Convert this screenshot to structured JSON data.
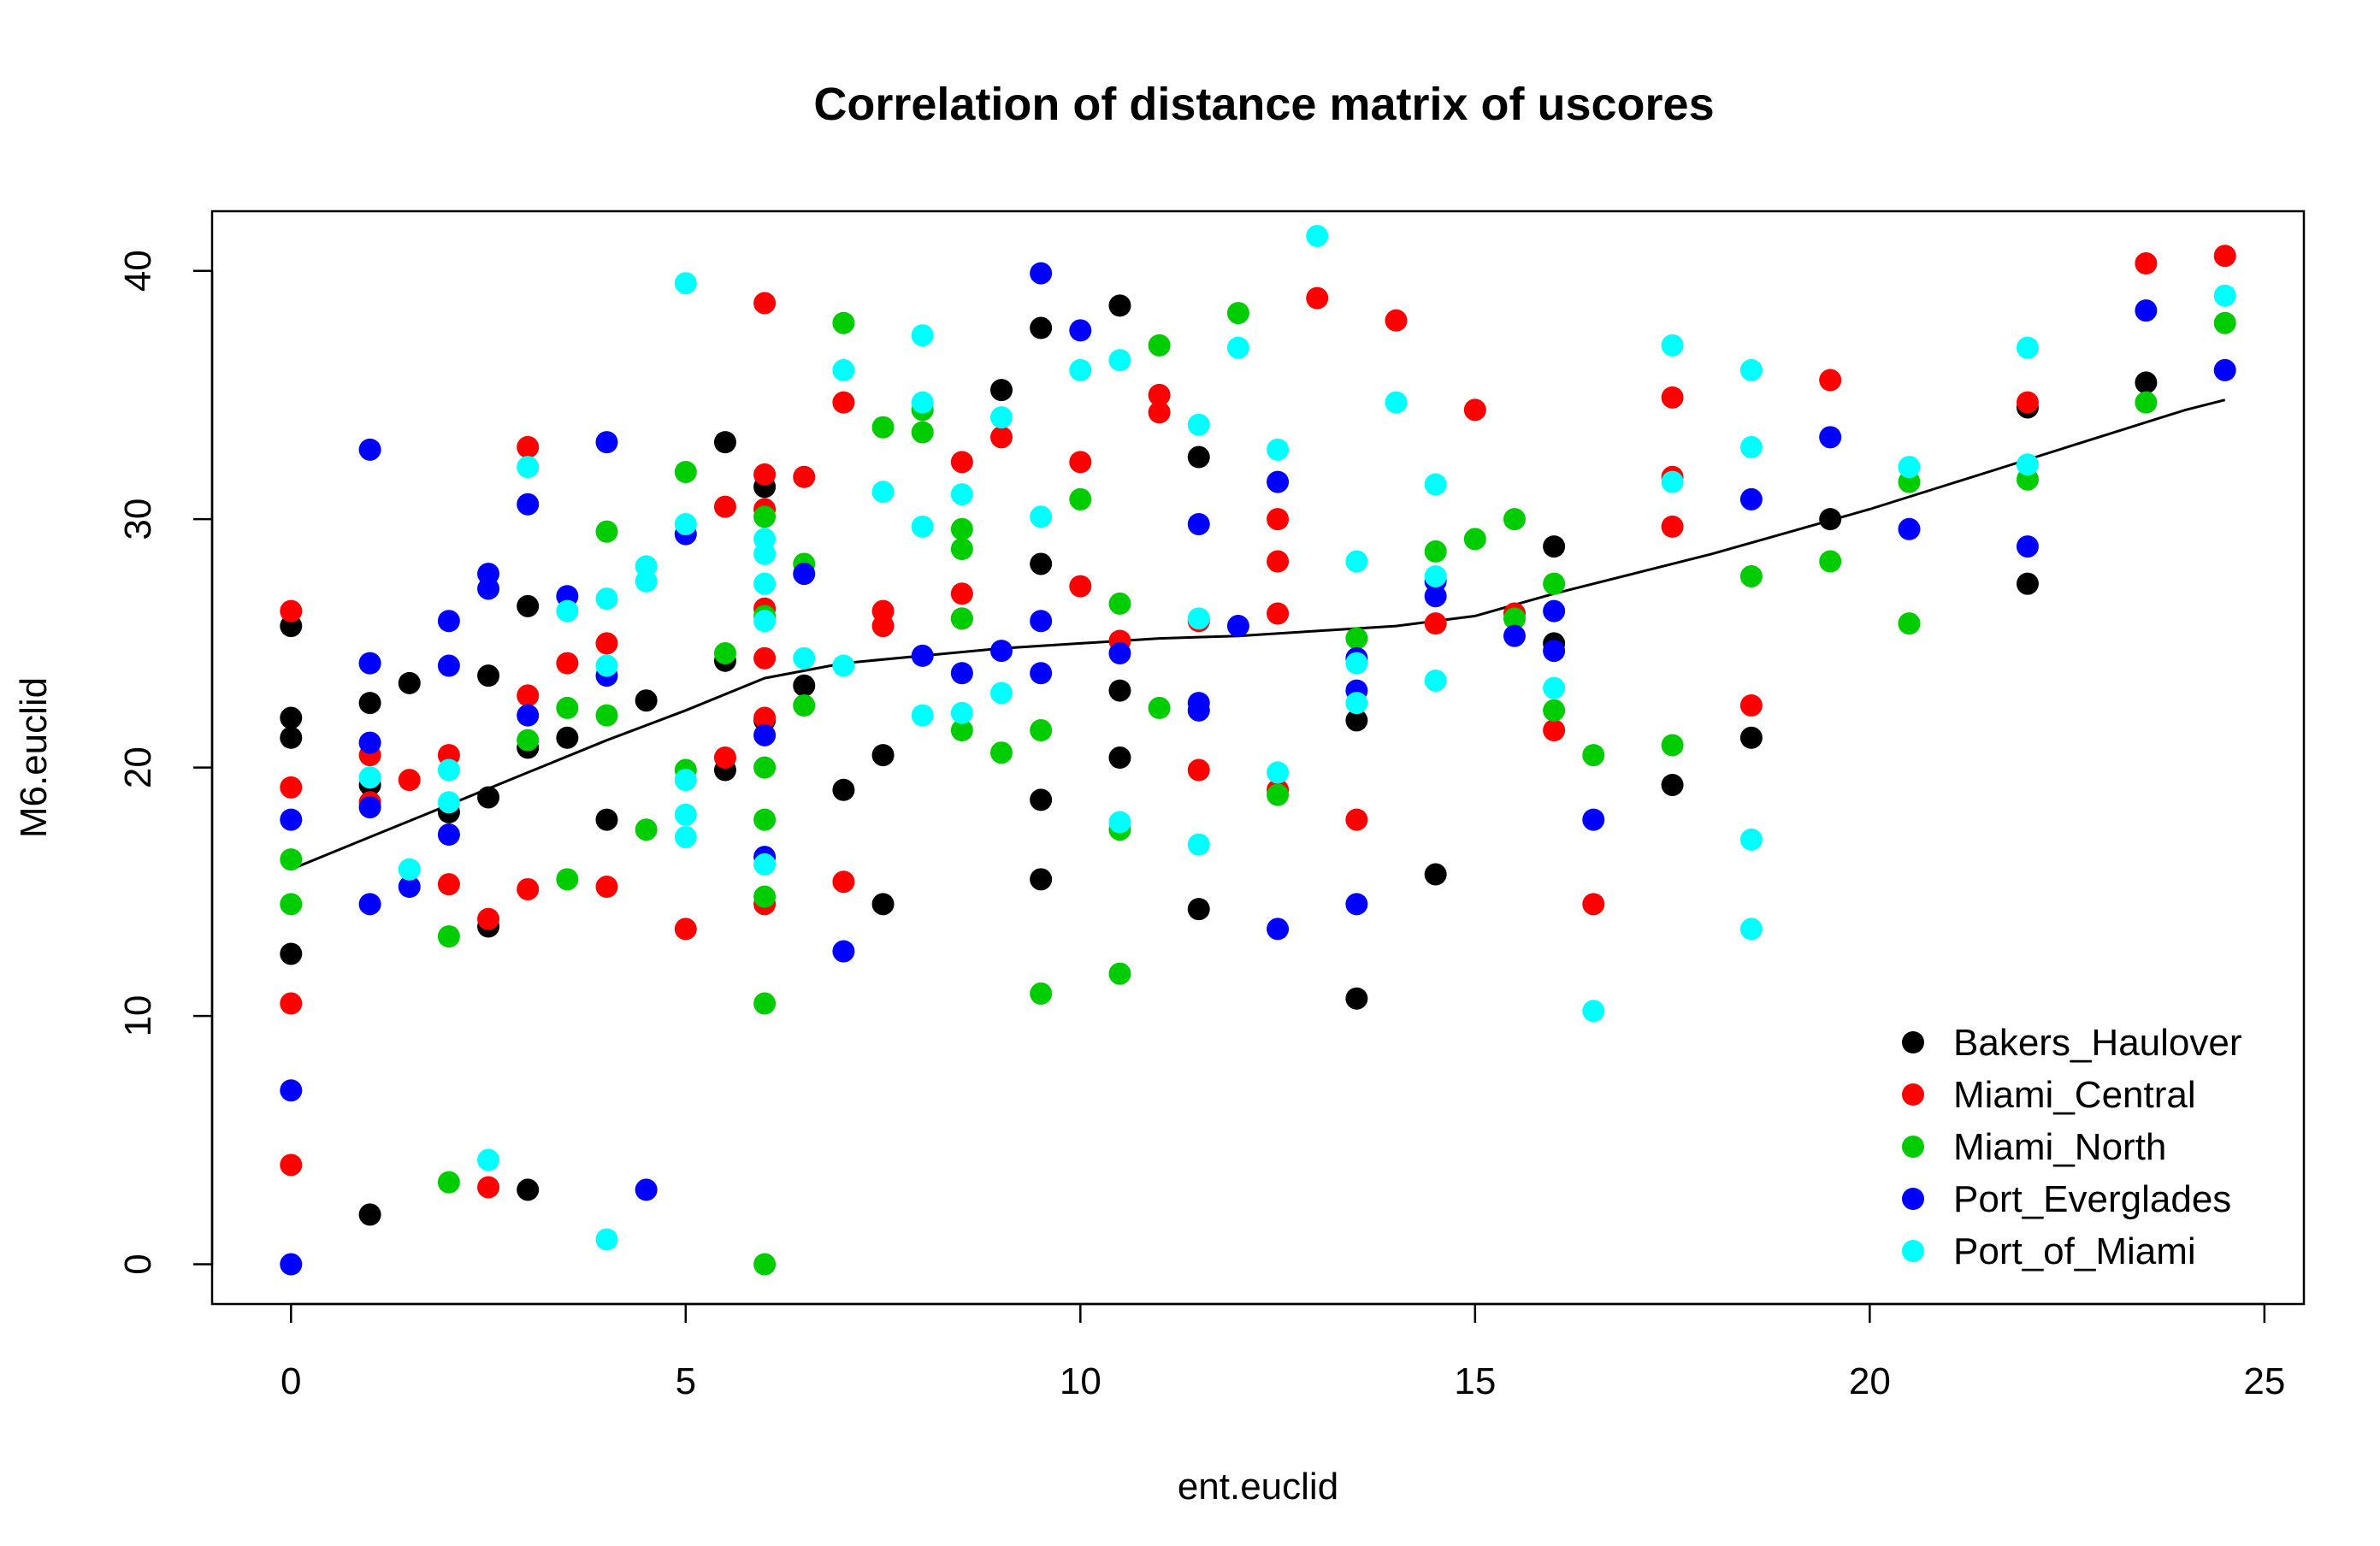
{
  "chart_data": {
    "type": "scatter",
    "title": "Correlation of distance matrix of uscores",
    "xlabel": "ent.euclid",
    "ylabel": "M6.euclid",
    "xlim": [
      -1,
      25.5
    ],
    "ylim": [
      -1.6,
      42.4
    ],
    "x_ticks": [
      0,
      5,
      10,
      15,
      20,
      25
    ],
    "y_ticks": [
      0,
      10,
      20,
      30,
      40
    ],
    "grid": false,
    "legend_position": "bottom-right",
    "series": [
      {
        "name": "Bakers_Haulover",
        "color": "#000000",
        "points": [
          [
            0,
            25.7
          ],
          [
            0,
            22
          ],
          [
            0,
            21.2
          ],
          [
            0,
            12.5
          ],
          [
            1,
            22.6
          ],
          [
            1,
            19.3
          ],
          [
            1,
            2
          ],
          [
            1.5,
            23.4
          ],
          [
            2,
            18.2
          ],
          [
            2.5,
            23.7
          ],
          [
            2.5,
            18.8
          ],
          [
            2.5,
            13.6
          ],
          [
            3,
            26.5
          ],
          [
            3,
            20.8
          ],
          [
            3,
            3
          ],
          [
            3.5,
            21.2
          ],
          [
            4,
            17.9
          ],
          [
            4.5,
            22.7
          ],
          [
            5.5,
            33.1
          ],
          [
            5.5,
            24.3
          ],
          [
            5.5,
            19.9
          ],
          [
            6,
            31.3
          ],
          [
            6,
            21.9
          ],
          [
            6.5,
            23.3
          ],
          [
            7,
            19.1
          ],
          [
            7.5,
            20.5
          ],
          [
            7.5,
            14.5
          ],
          [
            9,
            35.2
          ],
          [
            9.5,
            37.7
          ],
          [
            9.5,
            28.2
          ],
          [
            9.5,
            18.7
          ],
          [
            9.5,
            15.5
          ],
          [
            10.5,
            38.6
          ],
          [
            10.5,
            23.1
          ],
          [
            10.5,
            20.4
          ],
          [
            11.5,
            32.5
          ],
          [
            11.5,
            14.3
          ],
          [
            13.5,
            21.9
          ],
          [
            13.5,
            10.7
          ],
          [
            14.5,
            15.7
          ],
          [
            16,
            28.9
          ],
          [
            16,
            25
          ],
          [
            17.5,
            19.3
          ],
          [
            18.5,
            21.2
          ],
          [
            19.5,
            30
          ],
          [
            22,
            34.5
          ],
          [
            22,
            27.4
          ],
          [
            23.5,
            35.5
          ]
        ]
      },
      {
        "name": "Miami_Central",
        "color": "#ff0000",
        "points": [
          [
            0,
            26.3
          ],
          [
            0,
            19.2
          ],
          [
            0,
            10.5
          ],
          [
            0,
            4
          ],
          [
            1,
            20.5
          ],
          [
            1,
            18.6
          ],
          [
            1.5,
            19.5
          ],
          [
            2,
            20.5
          ],
          [
            2,
            15.3
          ],
          [
            2.5,
            13.9
          ],
          [
            2.5,
            3.1
          ],
          [
            3,
            32.9
          ],
          [
            3,
            22.9
          ],
          [
            3,
            15.1
          ],
          [
            3.5,
            24.2
          ],
          [
            4,
            25
          ],
          [
            4,
            15.2
          ],
          [
            5,
            13.5
          ],
          [
            5.5,
            30.5
          ],
          [
            5.5,
            20.4
          ],
          [
            6,
            38.7
          ],
          [
            6,
            31.8
          ],
          [
            6,
            30.4
          ],
          [
            6,
            26.4
          ],
          [
            6,
            24.4
          ],
          [
            6,
            22
          ],
          [
            6,
            14.5
          ],
          [
            6.5,
            31.7
          ],
          [
            7,
            34.7
          ],
          [
            7,
            15.4
          ],
          [
            7.5,
            26.3
          ],
          [
            7.5,
            25.7
          ],
          [
            8.5,
            32.3
          ],
          [
            8.5,
            27
          ],
          [
            8.5,
            26
          ],
          [
            9,
            33.3
          ],
          [
            10,
            32.3
          ],
          [
            10,
            27.3
          ],
          [
            10.5,
            25.1
          ],
          [
            11,
            35
          ],
          [
            11,
            34.3
          ],
          [
            11.5,
            25.9
          ],
          [
            11.5,
            19.9
          ],
          [
            12.5,
            30
          ],
          [
            12.5,
            28.3
          ],
          [
            12.5,
            26.2
          ],
          [
            12.5,
            19.1
          ],
          [
            13,
            38.9
          ],
          [
            13.5,
            17.9
          ],
          [
            14,
            38
          ],
          [
            14.5,
            25.8
          ],
          [
            15,
            34.4
          ],
          [
            15.5,
            26.2
          ],
          [
            16,
            21.5
          ],
          [
            16.5,
            14.5
          ],
          [
            17.5,
            34.9
          ],
          [
            17.5,
            31.7
          ],
          [
            17.5,
            29.7
          ],
          [
            18.5,
            22.5
          ],
          [
            19.5,
            35.6
          ],
          [
            22,
            34.7
          ],
          [
            23.5,
            40.3
          ],
          [
            24.5,
            40.6
          ]
        ]
      },
      {
        "name": "Miami_North",
        "color": "#00cd00",
        "points": [
          [
            0,
            16.3
          ],
          [
            0,
            14.5
          ],
          [
            1,
            24.2
          ],
          [
            2,
            13.2
          ],
          [
            2,
            3.3
          ],
          [
            3,
            21.1
          ],
          [
            3.5,
            22.4
          ],
          [
            3.5,
            15.5
          ],
          [
            4,
            29.5
          ],
          [
            4,
            22.1
          ],
          [
            4.5,
            17.5
          ],
          [
            5,
            31.9
          ],
          [
            5,
            19.9
          ],
          [
            5.5,
            24.6
          ],
          [
            6,
            30.1
          ],
          [
            6,
            26.1
          ],
          [
            6,
            20
          ],
          [
            6,
            17.9
          ],
          [
            6,
            14.8
          ],
          [
            6,
            10.5
          ],
          [
            6,
            0
          ],
          [
            6.5,
            28.2
          ],
          [
            6.5,
            22.5
          ],
          [
            7,
            37.9
          ],
          [
            7.5,
            33.7
          ],
          [
            8,
            34.4
          ],
          [
            8,
            33.5
          ],
          [
            8.5,
            29.6
          ],
          [
            8.5,
            28.8
          ],
          [
            8.5,
            26
          ],
          [
            8.5,
            21.5
          ],
          [
            9,
            20.6
          ],
          [
            9.5,
            21.5
          ],
          [
            9.5,
            10.9
          ],
          [
            10,
            30.8
          ],
          [
            10.5,
            26.6
          ],
          [
            10.5,
            17.5
          ],
          [
            10.5,
            11.7
          ],
          [
            11,
            37
          ],
          [
            11,
            22.4
          ],
          [
            12,
            38.3
          ],
          [
            12.5,
            18.9
          ],
          [
            13.5,
            25.2
          ],
          [
            14.5,
            28.7
          ],
          [
            15,
            29.2
          ],
          [
            15.5,
            30
          ],
          [
            15.5,
            26
          ],
          [
            16,
            27.4
          ],
          [
            16,
            22.3
          ],
          [
            16.5,
            20.5
          ],
          [
            17.5,
            20.9
          ],
          [
            18.5,
            27.7
          ],
          [
            19.5,
            28.3
          ],
          [
            20.5,
            31.5
          ],
          [
            20.5,
            25.8
          ],
          [
            22,
            31.6
          ],
          [
            23.5,
            34.7
          ],
          [
            24.5,
            37.9
          ]
        ]
      },
      {
        "name": "Port_Everglades",
        "color": "#0000ff",
        "points": [
          [
            0,
            17.9
          ],
          [
            0,
            7
          ],
          [
            0,
            0
          ],
          [
            1,
            32.8
          ],
          [
            1,
            24.2
          ],
          [
            1,
            21
          ],
          [
            1,
            18.4
          ],
          [
            1,
            14.5
          ],
          [
            1.5,
            15.2
          ],
          [
            2,
            25.9
          ],
          [
            2,
            24.1
          ],
          [
            2,
            17.3
          ],
          [
            2.5,
            27.8
          ],
          [
            2.5,
            27.2
          ],
          [
            3,
            30.6
          ],
          [
            3,
            22.1
          ],
          [
            3.5,
            26.9
          ],
          [
            4,
            33.1
          ],
          [
            4,
            23.7
          ],
          [
            4.5,
            3
          ],
          [
            5,
            29.4
          ],
          [
            6,
            21.3
          ],
          [
            6,
            16.4
          ],
          [
            6.5,
            27.8
          ],
          [
            7,
            12.6
          ],
          [
            8,
            24.5
          ],
          [
            8.5,
            23.8
          ],
          [
            9,
            24.7
          ],
          [
            9.5,
            39.9
          ],
          [
            9.5,
            25.9
          ],
          [
            9.5,
            23.8
          ],
          [
            10,
            37.6
          ],
          [
            10.5,
            24.6
          ],
          [
            11.5,
            29.8
          ],
          [
            11.5,
            22.6
          ],
          [
            11.5,
            22.3
          ],
          [
            12,
            25.7
          ],
          [
            12.5,
            31.5
          ],
          [
            12.5,
            13.5
          ],
          [
            13.5,
            24.4
          ],
          [
            13.5,
            23.1
          ],
          [
            13.5,
            14.5
          ],
          [
            14.5,
            27.5
          ],
          [
            14.5,
            26.9
          ],
          [
            15.5,
            25.3
          ],
          [
            16,
            26.3
          ],
          [
            16,
            24.7
          ],
          [
            16.5,
            17.9
          ],
          [
            18.5,
            30.8
          ],
          [
            19.5,
            33.3
          ],
          [
            20.5,
            29.6
          ],
          [
            22,
            28.9
          ],
          [
            23.5,
            38.4
          ],
          [
            24.5,
            36
          ]
        ]
      },
      {
        "name": "Port_of_Miami",
        "color": "#00ffff",
        "points": [
          [
            1,
            19.6
          ],
          [
            1.5,
            15.9
          ],
          [
            2,
            19.9
          ],
          [
            2,
            18.6
          ],
          [
            2.5,
            4.2
          ],
          [
            3,
            32.1
          ],
          [
            3.5,
            26.3
          ],
          [
            4,
            26.8
          ],
          [
            4,
            24.1
          ],
          [
            4,
            1
          ],
          [
            4.5,
            28.1
          ],
          [
            4.5,
            27.5
          ],
          [
            5,
            39.5
          ],
          [
            5,
            29.8
          ],
          [
            5,
            19.5
          ],
          [
            5,
            18.1
          ],
          [
            5,
            17.2
          ],
          [
            6,
            29.2
          ],
          [
            6,
            28.6
          ],
          [
            6,
            27.4
          ],
          [
            6,
            25.9
          ],
          [
            6,
            16.1
          ],
          [
            6.5,
            24.4
          ],
          [
            7,
            36
          ],
          [
            7,
            24.1
          ],
          [
            7.5,
            31.1
          ],
          [
            8,
            37.4
          ],
          [
            8,
            34.7
          ],
          [
            8,
            29.7
          ],
          [
            8,
            22.1
          ],
          [
            8.5,
            31
          ],
          [
            8.5,
            22.2
          ],
          [
            9,
            34.1
          ],
          [
            9,
            23
          ],
          [
            9.5,
            30.1
          ],
          [
            10,
            36
          ],
          [
            10.5,
            36.4
          ],
          [
            10.5,
            17.8
          ],
          [
            11.5,
            33.8
          ],
          [
            11.5,
            26
          ],
          [
            11.5,
            16.9
          ],
          [
            12,
            36.9
          ],
          [
            12.5,
            32.8
          ],
          [
            12.5,
            19.8
          ],
          [
            13,
            41.4
          ],
          [
            13.5,
            28.3
          ],
          [
            13.5,
            24.2
          ],
          [
            13.5,
            22.6
          ],
          [
            14,
            34.7
          ],
          [
            14.5,
            31.4
          ],
          [
            14.5,
            27.7
          ],
          [
            14.5,
            23.5
          ],
          [
            16,
            23.2
          ],
          [
            16.5,
            10.2
          ],
          [
            17.5,
            37
          ],
          [
            17.5,
            31.5
          ],
          [
            18.5,
            36
          ],
          [
            18.5,
            32.9
          ],
          [
            18.5,
            17.1
          ],
          [
            18.5,
            13.5
          ],
          [
            20.5,
            32.1
          ],
          [
            22,
            36.9
          ],
          [
            22,
            32.2
          ],
          [
            24.5,
            39
          ]
        ]
      }
    ],
    "trend_line": {
      "color": "#000000",
      "points": [
        [
          0,
          15.9
        ],
        [
          1,
          17.2
        ],
        [
          2,
          18.5
        ],
        [
          3,
          19.8
        ],
        [
          4,
          21.1
        ],
        [
          5,
          22.3
        ],
        [
          6,
          23.6
        ],
        [
          7,
          24.2
        ],
        [
          8,
          24.5
        ],
        [
          9,
          24.8
        ],
        [
          10,
          25
        ],
        [
          11,
          25.2
        ],
        [
          12,
          25.3
        ],
        [
          13,
          25.5
        ],
        [
          14,
          25.7
        ],
        [
          15,
          26.1
        ],
        [
          16,
          27
        ],
        [
          17,
          27.8
        ],
        [
          18,
          28.6
        ],
        [
          19,
          29.5
        ],
        [
          20,
          30.4
        ],
        [
          21,
          31.4
        ],
        [
          22,
          32.4
        ],
        [
          23,
          33.4
        ],
        [
          24,
          34.4
        ],
        [
          24.5,
          34.8
        ]
      ]
    }
  }
}
